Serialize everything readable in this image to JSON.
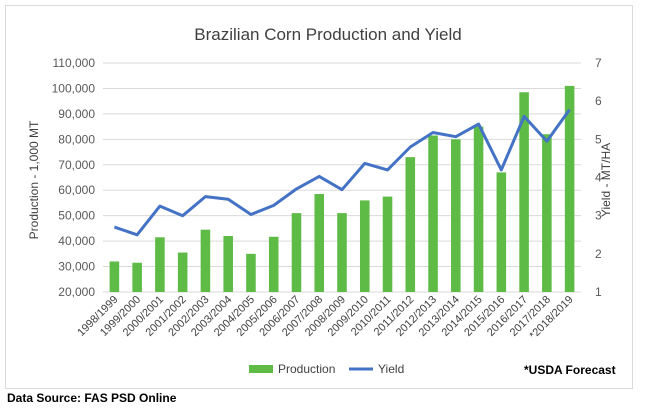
{
  "chart_data": {
    "type": "bar",
    "title": "Brazilian Corn Production and Yield",
    "categories": [
      "1998/1999",
      "1999/2000",
      "2000/2001",
      "2001/2002",
      "2002/2003",
      "2003/2004",
      "2004/2005",
      "2005/2006",
      "2006/2007",
      "2007/2008",
      "2008/2009",
      "2009/2010",
      "2010/2011",
      "2011/2012",
      "2012/2013",
      "2013/2014",
      "2014/2015",
      "2015/2016",
      "2016/2017",
      "2017/2018",
      "*2018/2019"
    ],
    "series": [
      {
        "name": "Production",
        "type": "bar",
        "axis": "left",
        "color": "#5dbb46",
        "values": [
          32000,
          31500,
          41500,
          35500,
          44500,
          42000,
          35000,
          41700,
          51000,
          58500,
          51000,
          56000,
          57500,
          73000,
          81500,
          80000,
          85000,
          67000,
          98500,
          82000,
          101000
        ]
      },
      {
        "name": "Yield",
        "type": "line",
        "axis": "right",
        "color": "#4472c4",
        "values": [
          2.7,
          2.5,
          3.25,
          3.0,
          3.5,
          3.43,
          3.03,
          3.27,
          3.7,
          4.03,
          3.68,
          4.37,
          4.2,
          4.8,
          5.18,
          5.07,
          5.4,
          4.2,
          5.6,
          4.95,
          5.78
        ]
      }
    ],
    "y_left": {
      "label": "Production - 1,000 MT",
      "min": 20000,
      "max": 110000,
      "step": 10000,
      "ticks": [
        "20,000",
        "30,000",
        "40,000",
        "50,000",
        "60,000",
        "70,000",
        "80,000",
        "90,000",
        "100,000",
        "110,000"
      ]
    },
    "y_right": {
      "label": "Yield - MT/HA",
      "min": 1,
      "max": 7,
      "step": 1,
      "ticks": [
        "1",
        "2",
        "3",
        "4",
        "5",
        "6",
        "7"
      ]
    },
    "grid": true,
    "legend_position": "bottom",
    "annotation": "*USDA Forecast"
  },
  "footer": {
    "source": "Data Source: FAS PSD Online"
  }
}
